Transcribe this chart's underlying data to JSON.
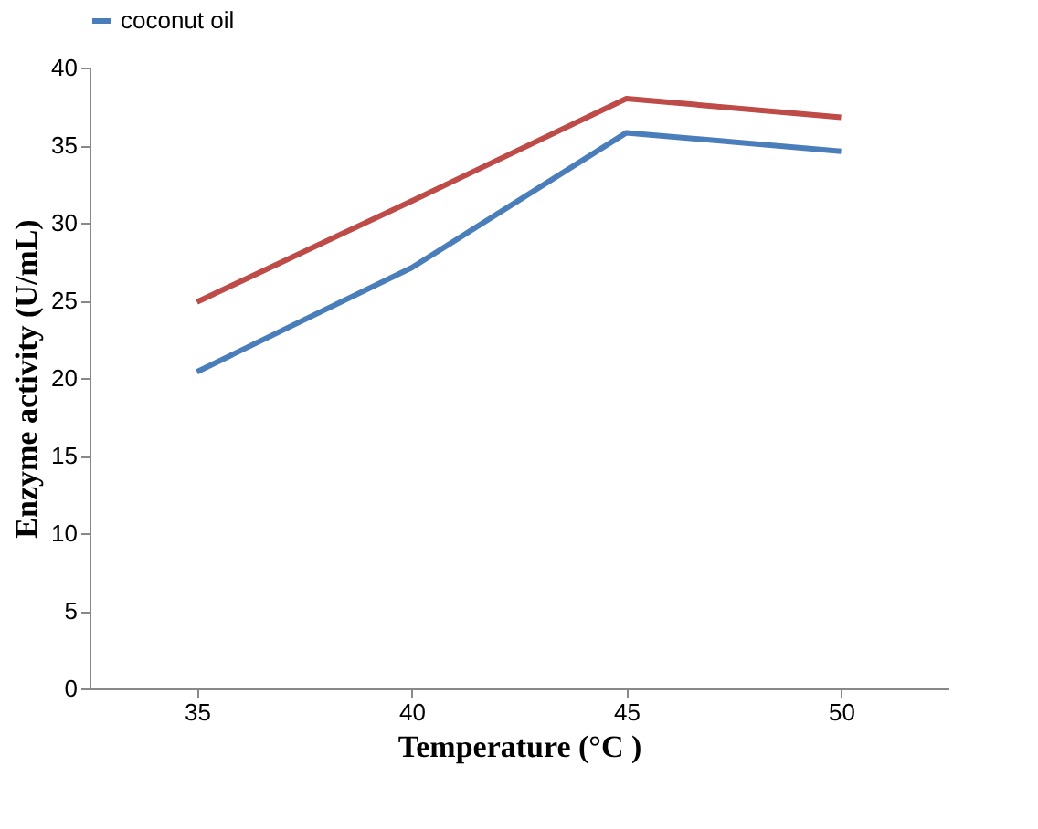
{
  "chart_data": {
    "type": "line",
    "xlabel": "Temperature (°C )",
    "ylabel": "Enzyme activity (U/mL)",
    "categories": [
      "35",
      "40",
      "45",
      "50"
    ],
    "series": [
      {
        "name": "coconut oil",
        "color": "#4a7ebb",
        "values": [
          20.4,
          27.1,
          35.8,
          34.6
        ]
      },
      {
        "color": "#be4b48",
        "values": [
          24.9,
          31.4,
          38.0,
          36.8
        ]
      }
    ],
    "ylim": [
      0,
      40
    ],
    "yticks": [
      0,
      5,
      10,
      15,
      20,
      25,
      30,
      35,
      40
    ],
    "grid": false,
    "legend": "top",
    "marker": "none",
    "line_style": "solid"
  }
}
